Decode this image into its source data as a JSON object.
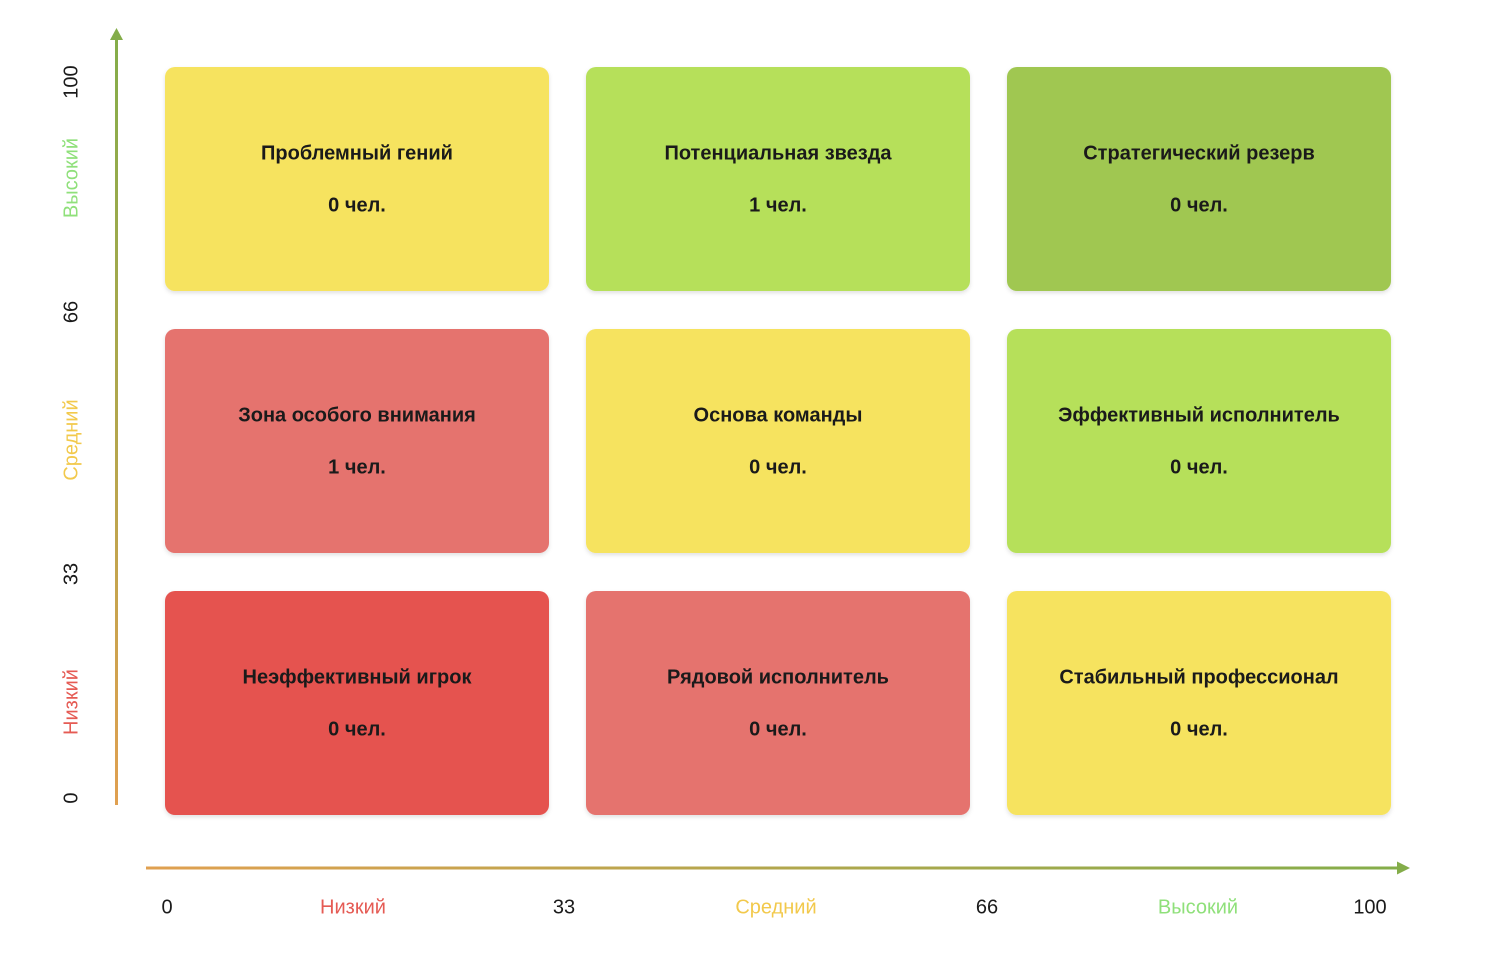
{
  "y_axis": {
    "ticks": [
      "0",
      "33",
      "66",
      "100"
    ],
    "levels": [
      "Низкий",
      "Средний",
      "Высокий"
    ]
  },
  "x_axis": {
    "ticks": [
      "0",
      "33",
      "66",
      "100"
    ],
    "levels": [
      "Низкий",
      "Средний",
      "Высокий"
    ]
  },
  "cells": [
    [
      {
        "title": "Проблемный гений",
        "count": "0 чел."
      },
      {
        "title": "Потенциальная звезда",
        "count": "1 чел."
      },
      {
        "title": "Стратегический резерв",
        "count": "0 чел."
      }
    ],
    [
      {
        "title": "Зона особого внимания",
        "count": "1 чел."
      },
      {
        "title": "Основа команды",
        "count": "0 чел."
      },
      {
        "title": "Эффективный исполнитель",
        "count": "0 чел."
      }
    ],
    [
      {
        "title": "Неэффективный игрок",
        "count": "0 чел."
      },
      {
        "title": "Рядовой исполнитель",
        "count": "0 чел."
      },
      {
        "title": "Стабильный профессионал",
        "count": "0 чел."
      }
    ]
  ]
}
